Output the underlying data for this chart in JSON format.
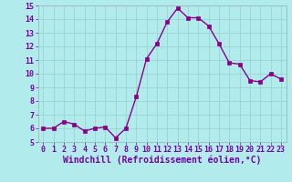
{
  "x": [
    0,
    1,
    2,
    3,
    4,
    5,
    6,
    7,
    8,
    9,
    10,
    11,
    12,
    13,
    14,
    15,
    16,
    17,
    18,
    19,
    20,
    21,
    22,
    23
  ],
  "y": [
    6.0,
    6.0,
    6.5,
    6.3,
    5.8,
    6.0,
    6.1,
    5.3,
    6.0,
    8.3,
    11.1,
    12.2,
    13.8,
    14.8,
    14.1,
    14.1,
    13.5,
    12.2,
    10.8,
    10.7,
    9.5,
    9.4,
    10.0,
    9.6
  ],
  "line_color": "#8B008B",
  "marker": "s",
  "marker_size": 2.2,
  "bg_color": "#b2ebeb",
  "grid_color": "#99d5d5",
  "xlabel": "Windchill (Refroidissement éolien,°C)",
  "xlim": [
    -0.5,
    23.5
  ],
  "ylim": [
    5,
    15
  ],
  "yticks": [
    5,
    6,
    7,
    8,
    9,
    10,
    11,
    12,
    13,
    14,
    15
  ],
  "xticks": [
    0,
    1,
    2,
    3,
    4,
    5,
    6,
    7,
    8,
    9,
    10,
    11,
    12,
    13,
    14,
    15,
    16,
    17,
    18,
    19,
    20,
    21,
    22,
    23
  ],
  "tick_fontsize": 6.0,
  "xlabel_fontsize": 7.0,
  "line_width": 1.0
}
